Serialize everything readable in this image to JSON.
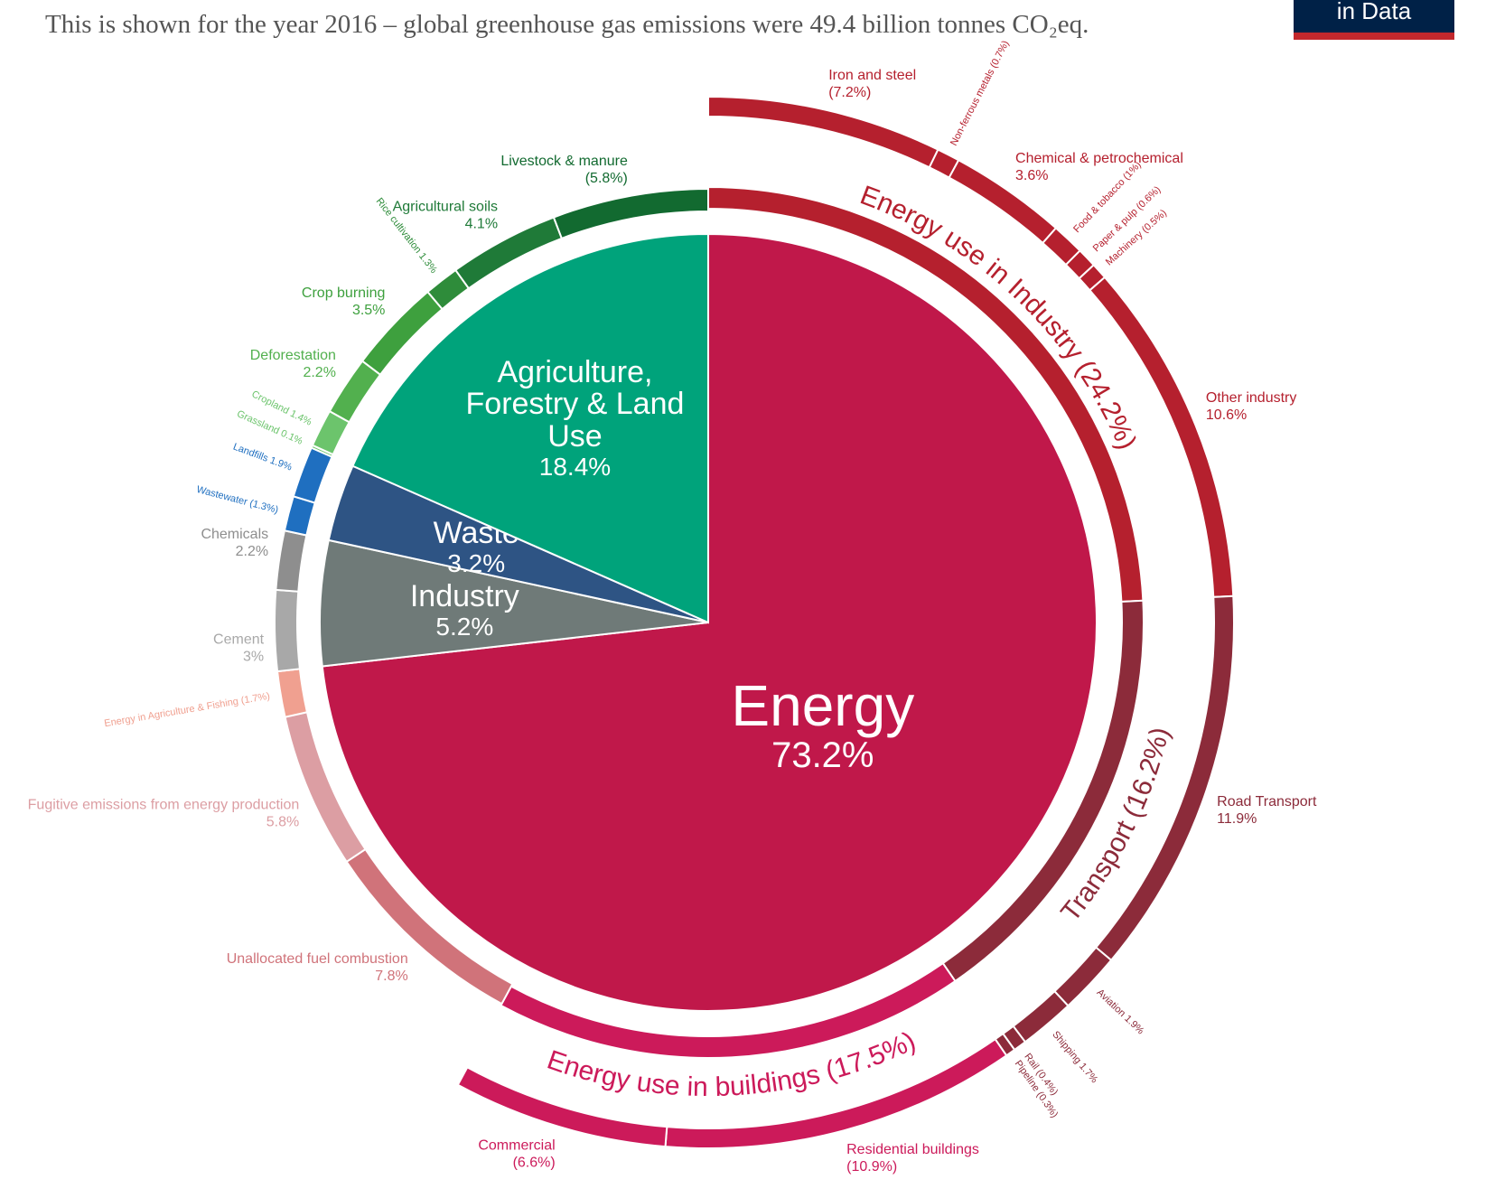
{
  "chart_data": {
    "type": "sunburst",
    "subtitle": "This is shown for the year 2016 – global greenhouse gas emissions were 49.4 billion tonnes CO₂eq.",
    "logo": "in Data",
    "sectors": [
      {
        "name": "Energy",
        "value": 73.2,
        "value_label": "73.2%",
        "color": "#c0184a",
        "children": [
          {
            "name": "Energy use in Industry",
            "value": 24.2,
            "value_label": "(24.2%)",
            "color": "#b5202e",
            "children": [
              {
                "name": "Iron and steel",
                "value": 7.2,
                "value_label": "(7.2%)",
                "color": "#b5202e"
              },
              {
                "name": "Non-ferrous metals",
                "value": 0.7,
                "value_label": "(0.7%)",
                "color": "#b5202e"
              },
              {
                "name": "Chemical & petrochemical",
                "value": 3.6,
                "value_label": "3.6%",
                "color": "#b5202e"
              },
              {
                "name": "Food & tobacco",
                "value": 1,
                "value_label": "(1%)",
                "color": "#b5202e"
              },
              {
                "name": "Paper & pulp",
                "value": 0.6,
                "value_label": "(0.6%)",
                "color": "#b5202e"
              },
              {
                "name": "Machinery",
                "value": 0.5,
                "value_label": "(0.5%)",
                "color": "#b5202e"
              },
              {
                "name": "Other industry",
                "value": 10.6,
                "value_label": "10.6%",
                "color": "#b5202e"
              }
            ]
          },
          {
            "name": "Transport",
            "value": 16.2,
            "value_label": "(16.2%)",
            "color": "#8c2b3a",
            "children": [
              {
                "name": "Road Transport",
                "value": 11.9,
                "value_label": "11.9%",
                "color": "#8c2b3a"
              },
              {
                "name": "Aviation",
                "value": 1.9,
                "value_label": "1.9%",
                "color": "#8c2b3a"
              },
              {
                "name": "Shipping",
                "value": 1.7,
                "value_label": "1.7%",
                "color": "#8c2b3a"
              },
              {
                "name": "Rail",
                "value": 0.4,
                "value_label": "(0.4%)",
                "color": "#8c2b3a"
              },
              {
                "name": "Pipeline",
                "value": 0.3,
                "value_label": "(0.3%)",
                "color": "#8c2b3a"
              }
            ]
          },
          {
            "name": "Energy use in buildings",
            "value": 17.5,
            "value_label": "(17.5%)",
            "color": "#cc1a5a",
            "children": [
              {
                "name": "Residential buildings",
                "value": 10.9,
                "value_label": "(10.9%)",
                "color": "#cc1a5a"
              },
              {
                "name": "Commercial",
                "value": 6.6,
                "value_label": "(6.6%)",
                "color": "#cc1a5a"
              }
            ]
          },
          {
            "name": "Unallocated fuel combustion",
            "value": 7.8,
            "value_label": "7.8%",
            "color": "#d0737a"
          },
          {
            "name": "Fugitive emissions from energy production",
            "value": 5.8,
            "value_label": "5.8%",
            "color": "#dc9ea3"
          },
          {
            "name": "Energy in Agriculture & Fishing",
            "value": 1.7,
            "value_label": "(1.7%)",
            "color": "#f0a090"
          }
        ]
      },
      {
        "name": "Industry",
        "value": 5.2,
        "value_label": "5.2%",
        "color": "#6f7a78",
        "children": [
          {
            "name": "Cement",
            "value": 3,
            "value_label": "3%",
            "color": "#a8a8a8"
          },
          {
            "name": "Chemicals",
            "value": 2.2,
            "value_label": "2.2%",
            "color": "#8e8e8e"
          }
        ]
      },
      {
        "name": "Waste",
        "value": 3.2,
        "value_label": "3.2%",
        "color": "#2e5484",
        "children": [
          {
            "name": "Wastewater",
            "value": 1.3,
            "value_label": "(1.3%)",
            "color": "#1f6fc0"
          },
          {
            "name": "Landfills",
            "value": 1.9,
            "value_label": "1.9%",
            "color": "#1f6fc0"
          }
        ]
      },
      {
        "name": "Agriculture, Forestry & Land Use",
        "value": 18.4,
        "value_label": "18.4%",
        "color": "#00a37b",
        "children": [
          {
            "name": "Grassland",
            "value": 0.1,
            "value_label": "0.1%",
            "color": "#6cc46c"
          },
          {
            "name": "Cropland",
            "value": 1.4,
            "value_label": "1.4%",
            "color": "#6cc46c"
          },
          {
            "name": "Deforestation",
            "value": 2.2,
            "value_label": "2.2%",
            "color": "#52b04e"
          },
          {
            "name": "Crop burning",
            "value": 3.5,
            "value_label": "3.5%",
            "color": "#3ea03e"
          },
          {
            "name": "Rice cultivation",
            "value": 1.3,
            "value_label": "1.3%",
            "color": "#2e8c3a"
          },
          {
            "name": "Agricultural soils",
            "value": 4.1,
            "value_label": "4.1%",
            "color": "#1f7a38"
          },
          {
            "name": "Livestock & manure",
            "value": 5.8,
            "value_label": "(5.8%)",
            "color": "#126a30"
          }
        ]
      }
    ]
  }
}
